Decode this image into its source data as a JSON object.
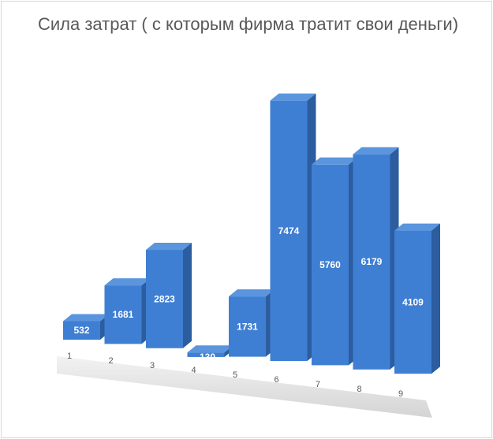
{
  "chart_data": {
    "type": "bar",
    "title": "Сила затрат ( с которым фирма тратит свои деньги)",
    "categories": [
      "1",
      "2",
      "3",
      "4",
      "5",
      "6",
      "7",
      "8",
      "9"
    ],
    "values": [
      532,
      1681,
      2823,
      -130,
      1731,
      7474,
      5760,
      6179,
      4109
    ],
    "data_labels": [
      "532",
      "1681",
      "2823",
      "-130",
      "1731",
      "7474",
      "5760",
      "6179",
      "4109"
    ],
    "xlabel": "",
    "ylabel": "",
    "grid": false,
    "legend": "none",
    "bar_color": "#3f7fd3",
    "bar_side_color": "#2b5d9f",
    "bar_top_color": "#5a95de",
    "floor_color": "#d8d8d8",
    "style": "3d-perspective"
  }
}
